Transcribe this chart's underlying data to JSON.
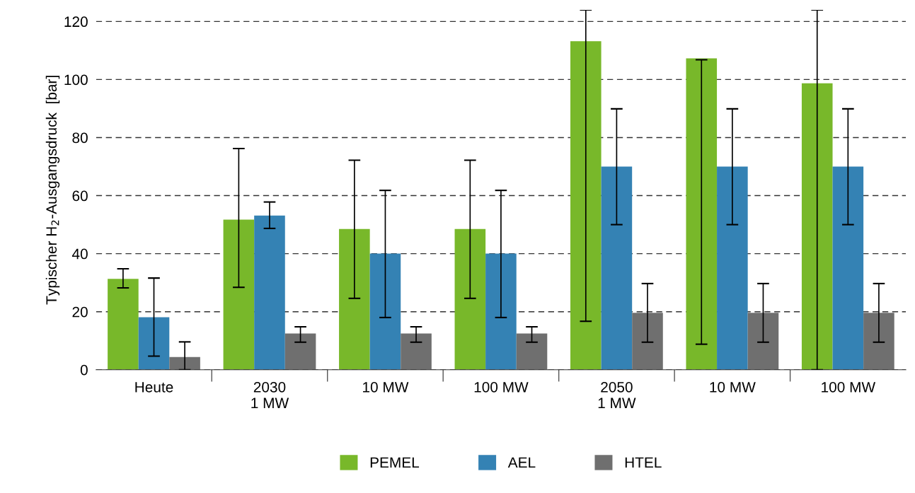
{
  "chart_data": {
    "type": "bar",
    "ylabel": "Typischer H$_{2}$-Ausgangsdruck  [bar]",
    "categories": [
      "Heute",
      "2030\n1 MW",
      "10 MW",
      "100 MW",
      "2050\n1 MW",
      "10 MW",
      "100 MW"
    ],
    "series": [
      {
        "name": "PEMEL",
        "color": "#78b82a",
        "values": [
          31.3,
          51.7,
          48.5,
          48.5,
          113.2,
          107.3,
          98.7
        ],
        "errors": [
          [
            28.2,
            34.8
          ],
          [
            28.4,
            76.2
          ],
          [
            24.6,
            72.2
          ],
          [
            24.6,
            72.2
          ],
          [
            16.7,
            124
          ],
          [
            8.8,
            106.8
          ],
          [
            0,
            124
          ]
        ]
      },
      {
        "name": "AEL",
        "color": "#3482b4",
        "values": [
          18.1,
          53.1,
          40,
          40,
          70,
          70,
          70
        ],
        "errors": [
          [
            4.7,
            31.6
          ],
          [
            48.7,
            57.8
          ],
          [
            18,
            61.8
          ],
          [
            18,
            61.8
          ],
          [
            50,
            89.9
          ],
          [
            50,
            89.9
          ],
          [
            50,
            89.9
          ]
        ]
      },
      {
        "name": "HTEL",
        "color": "#6f6f6f",
        "values": [
          4.4,
          12.5,
          12.5,
          12.5,
          19.6,
          19.6,
          19.6
        ],
        "errors": [
          [
            0,
            9.6
          ],
          [
            9.5,
            14.8
          ],
          [
            9.5,
            14.8
          ],
          [
            9.5,
            14.8
          ],
          [
            9.5,
            29.7
          ],
          [
            9.5,
            29.7
          ],
          [
            9.5,
            29.7
          ]
        ]
      }
    ],
    "ylim": [
      0,
      124
    ],
    "yticks": [
      0,
      20,
      40,
      60,
      80,
      100,
      120
    ],
    "grid": "y",
    "legend": "bottom"
  }
}
